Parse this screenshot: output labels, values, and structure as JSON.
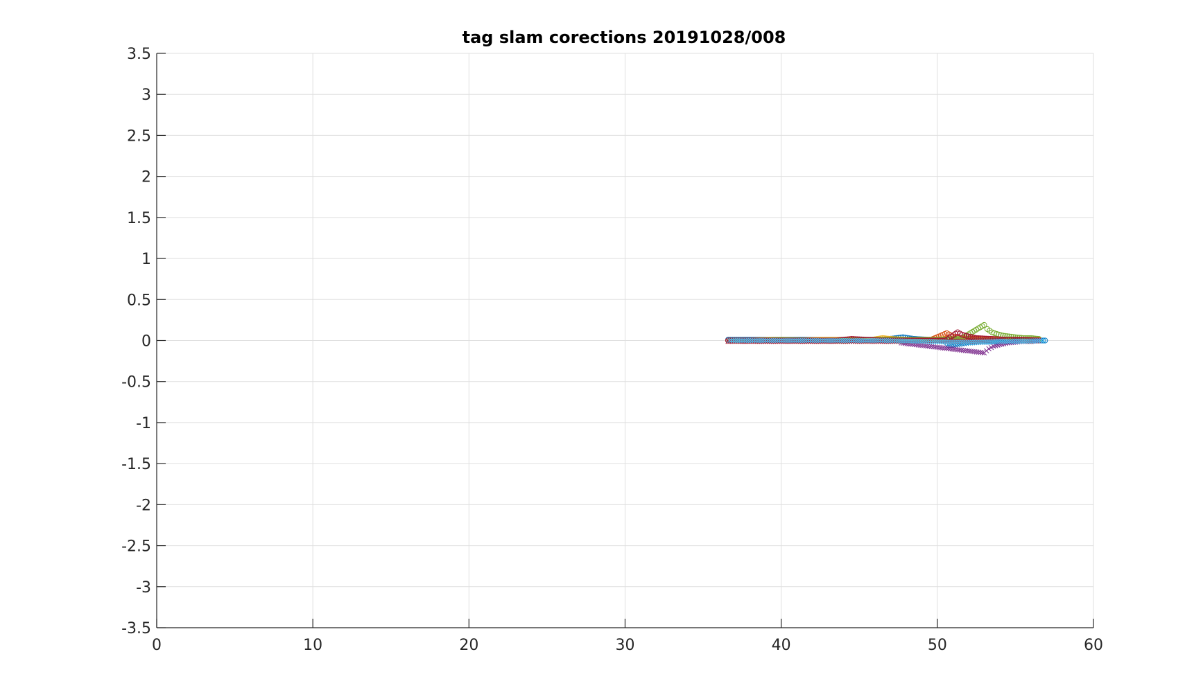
{
  "chart_data": {
    "type": "scatter",
    "title": "tag slam corections  20191028/008",
    "xlabel": "",
    "ylabel": "",
    "xlim": [
      0,
      60
    ],
    "ylim": [
      -3.5,
      3.5
    ],
    "x_ticks": [
      "0",
      "10",
      "20",
      "30",
      "40",
      "50",
      "60"
    ],
    "y_ticks": [
      "3.5",
      "3",
      "2.5",
      "2",
      "1.5",
      "1",
      "0.5",
      "0",
      "-0.5",
      "-1",
      "-1.5",
      "-2",
      "-2.5",
      "-3",
      "-3.5"
    ],
    "grid": true,
    "legend": "none",
    "series": [
      {
        "marker": "circle",
        "color": "#0072BD",
        "points": [
          [
            36.6,
            0.01
          ],
          [
            37.5,
            0.01
          ],
          [
            38.5,
            0.01
          ],
          [
            39.5,
            0.01
          ],
          [
            40.5,
            0.01
          ],
          [
            41.5,
            0.01
          ],
          [
            42.5,
            0.01
          ],
          [
            43.5,
            0.01
          ],
          [
            44.5,
            0.01
          ],
          [
            45.5,
            0.01
          ],
          [
            46.5,
            0.01
          ],
          [
            47.8,
            0.04
          ],
          [
            48.5,
            0.02
          ],
          [
            49.5,
            0.01
          ],
          [
            50.5,
            0.01
          ],
          [
            51.5,
            0.0
          ],
          [
            52.5,
            0.0
          ],
          [
            53.5,
            0.0
          ],
          [
            54.5,
            0.0
          ],
          [
            55.5,
            0.0
          ],
          [
            56.3,
            0.0
          ],
          [
            56.9,
            0.0
          ]
        ]
      },
      {
        "marker": "circle",
        "color": "#D95319",
        "points": [
          [
            36.6,
            0.0
          ],
          [
            37.6,
            0.0
          ],
          [
            38.6,
            0.0
          ],
          [
            39.6,
            0.0
          ],
          [
            40.6,
            0.0
          ],
          [
            41.6,
            0.0
          ],
          [
            42.6,
            0.0
          ],
          [
            43.6,
            0.0
          ],
          [
            44.6,
            0.01
          ],
          [
            45.6,
            0.01
          ],
          [
            46.6,
            0.01
          ],
          [
            47.6,
            0.01
          ],
          [
            48.6,
            0.01
          ],
          [
            49.6,
            0.01
          ],
          [
            50.6,
            0.09
          ],
          [
            51.0,
            0.05
          ],
          [
            51.5,
            0.03
          ],
          [
            52.5,
            0.02
          ],
          [
            53.5,
            0.01
          ],
          [
            54.5,
            0.01
          ],
          [
            55.5,
            0.01
          ],
          [
            56.5,
            0.01
          ]
        ]
      },
      {
        "marker": "circle",
        "color": "#EDB120",
        "points": [
          [
            36.7,
            0.0
          ],
          [
            38.0,
            0.0
          ],
          [
            39.5,
            0.01
          ],
          [
            41.0,
            0.0
          ],
          [
            42.5,
            0.01
          ],
          [
            44.0,
            0.01
          ],
          [
            45.5,
            0.0
          ],
          [
            46.5,
            0.03
          ],
          [
            47.0,
            0.02
          ],
          [
            48.0,
            0.01
          ],
          [
            49.5,
            0.01
          ],
          [
            51.0,
            0.02
          ],
          [
            52.5,
            0.01
          ],
          [
            54.0,
            0.01
          ],
          [
            55.5,
            0.01
          ],
          [
            56.5,
            0.0
          ]
        ]
      },
      {
        "marker": "circle",
        "color": "#77AC30",
        "points": [
          [
            36.8,
            0.0
          ],
          [
            38.5,
            0.0
          ],
          [
            40.0,
            0.01
          ],
          [
            42.0,
            0.0
          ],
          [
            44.0,
            0.0
          ],
          [
            46.0,
            0.01
          ],
          [
            48.0,
            0.01
          ],
          [
            50.0,
            0.01
          ],
          [
            51.5,
            0.02
          ],
          [
            53.0,
            0.19
          ],
          [
            53.2,
            0.14
          ],
          [
            53.5,
            0.1
          ],
          [
            53.8,
            0.08
          ],
          [
            54.2,
            0.06
          ],
          [
            54.6,
            0.05
          ],
          [
            55.0,
            0.04
          ],
          [
            55.5,
            0.03
          ],
          [
            56.0,
            0.03
          ],
          [
            56.5,
            0.02
          ]
        ]
      },
      {
        "marker": "circle",
        "color": "#A2142F",
        "points": [
          [
            36.6,
            0.0
          ],
          [
            37.8,
            0.0
          ],
          [
            39.0,
            0.0
          ],
          [
            40.5,
            0.0
          ],
          [
            42.0,
            0.0
          ],
          [
            43.5,
            0.0
          ],
          [
            44.5,
            0.02
          ],
          [
            45.5,
            0.01
          ],
          [
            46.5,
            0.0
          ],
          [
            47.5,
            0.0
          ],
          [
            48.5,
            0.0
          ],
          [
            49.5,
            0.0
          ],
          [
            50.5,
            0.0
          ],
          [
            51.3,
            0.1
          ],
          [
            51.6,
            0.07
          ],
          [
            52.0,
            0.05
          ],
          [
            52.5,
            0.03
          ],
          [
            53.5,
            0.02
          ],
          [
            54.5,
            0.01
          ],
          [
            55.5,
            0.01
          ],
          [
            56.5,
            0.0
          ]
        ]
      },
      {
        "marker": "cross",
        "color": "#0072BD",
        "points": [
          [
            50.6,
            -0.07
          ],
          [
            51.3,
            -0.05
          ],
          [
            52.0,
            -0.03
          ],
          [
            53.0,
            -0.02
          ],
          [
            54.0,
            -0.02
          ],
          [
            55.0,
            -0.01
          ],
          [
            56.0,
            -0.01
          ]
        ]
      },
      {
        "marker": "cross",
        "color": "#7E2F8E",
        "points": [
          [
            47.7,
            -0.03
          ],
          [
            53.0,
            -0.15
          ],
          [
            53.3,
            -0.1
          ],
          [
            53.6,
            -0.07
          ],
          [
            54.0,
            -0.05
          ],
          [
            54.5,
            -0.03
          ],
          [
            55.0,
            -0.02
          ],
          [
            55.5,
            -0.01
          ],
          [
            56.0,
            -0.01
          ],
          [
            56.5,
            0.0
          ]
        ]
      },
      {
        "marker": "cross",
        "color": "#A2142F",
        "points": [
          [
            36.6,
            -0.01
          ],
          [
            38.0,
            -0.01
          ],
          [
            40.0,
            -0.01
          ],
          [
            42.0,
            -0.01
          ],
          [
            44.0,
            -0.01
          ],
          [
            46.0,
            -0.01
          ],
          [
            48.0,
            -0.01
          ],
          [
            50.0,
            -0.01
          ],
          [
            52.0,
            -0.01
          ],
          [
            54.0,
            -0.01
          ],
          [
            56.0,
            -0.01
          ]
        ]
      },
      {
        "marker": "cross",
        "color": "#4DBEEE",
        "points": [
          [
            36.7,
            0.0
          ],
          [
            39.0,
            0.0
          ],
          [
            41.5,
            0.0
          ],
          [
            44.0,
            0.0
          ],
          [
            46.5,
            0.0
          ],
          [
            49.0,
            -0.01
          ],
          [
            51.0,
            -0.02
          ],
          [
            52.5,
            -0.02
          ],
          [
            54.0,
            -0.01
          ],
          [
            55.5,
            -0.01
          ],
          [
            56.8,
            0.0
          ]
        ]
      }
    ]
  }
}
